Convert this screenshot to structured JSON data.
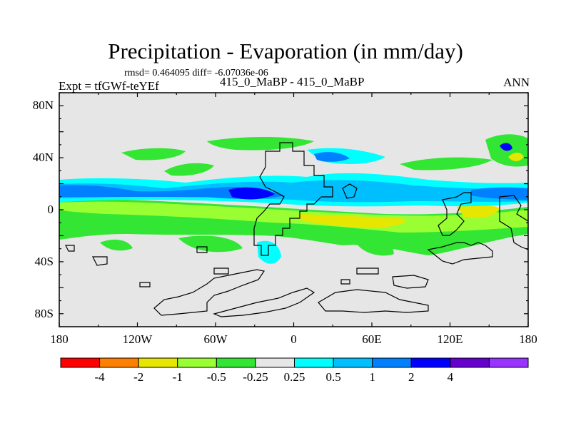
{
  "title": "Precipitation - Evaporation (in mm/day)",
  "stats": "rmsd= 0.464095 diff= -6.07036e-06",
  "experiment": "Expt = tfGWf-teYEf",
  "case_label": "415_0_MaBP - 415_0_MaBP",
  "season": "ANN",
  "map": {
    "projection": "cylindrical equidistant",
    "lon_range": [
      -180,
      180
    ],
    "lat_range": [
      -90,
      90
    ],
    "background_color": "#e6e6e6",
    "coastline_color": "#000000",
    "y_ticks": [
      {
        "value": 80,
        "label": "80N"
      },
      {
        "value": 40,
        "label": "40N"
      },
      {
        "value": 0,
        "label": "0"
      },
      {
        "value": -40,
        "label": "40S"
      },
      {
        "value": -80,
        "label": "80S"
      }
    ],
    "x_ticks": [
      {
        "value": -180,
        "label": "180"
      },
      {
        "value": -120,
        "label": "120W"
      },
      {
        "value": -60,
        "label": "60W"
      },
      {
        "value": 0,
        "label": "0"
      },
      {
        "value": 60,
        "label": "60E"
      },
      {
        "value": 120,
        "label": "120E"
      },
      {
        "value": 180,
        "label": "180"
      }
    ]
  },
  "colorbar": {
    "colors": [
      "#ff0000",
      "#ff8000",
      "#e6e600",
      "#99ff33",
      "#33e633",
      "#e6e6e6",
      "#00ffff",
      "#00bfff",
      "#0080ff",
      "#0000ff",
      "#6600cc",
      "#9933ff"
    ],
    "labels": [
      "-4",
      "-2",
      "-1",
      "-0.5",
      "-0.25",
      "0.25",
      "0.5",
      "1",
      "2",
      "4"
    ]
  }
}
